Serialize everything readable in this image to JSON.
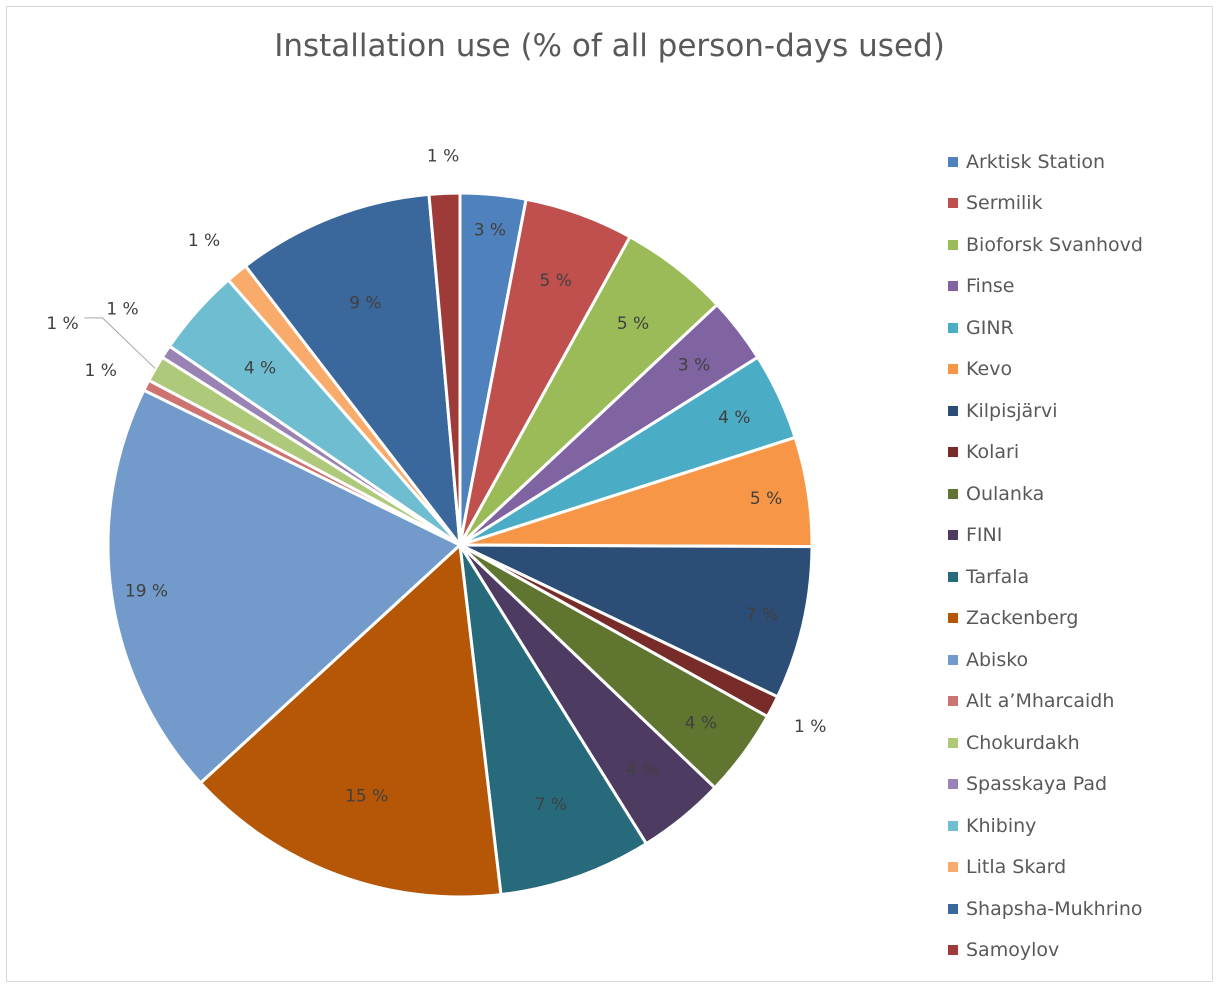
{
  "chart_data": {
    "type": "pie",
    "title": "Installation use (% of all person-days used)",
    "legend_position": "right",
    "slices": [
      {
        "name": "Arktisk Station",
        "value": 3,
        "label": "3 %",
        "color": "#4f81bd"
      },
      {
        "name": "Sermilik",
        "value": 5,
        "label": "5 %",
        "color": "#c0504d"
      },
      {
        "name": "Bioforsk Svanhovd",
        "value": 5,
        "label": "5 %",
        "color": "#9bbb59"
      },
      {
        "name": "Finse",
        "value": 3,
        "label": "3 %",
        "color": "#8064a2"
      },
      {
        "name": "GINR",
        "value": 4,
        "label": "4 %",
        "color": "#4bacc6"
      },
      {
        "name": "Kevo",
        "value": 5,
        "label": "5 %",
        "color": "#f79646"
      },
      {
        "name": "Kilpisjärvi",
        "value": 7,
        "label": "7 %",
        "color": "#2c4d75"
      },
      {
        "name": "Kolari",
        "value": 1,
        "label": "1 %",
        "color": "#772c2a"
      },
      {
        "name": "Oulanka",
        "value": 4,
        "label": "4 %",
        "color": "#5f7530"
      },
      {
        "name": "FINI",
        "value": 4,
        "label": "4 %",
        "color": "#4d3b62"
      },
      {
        "name": "Tarfala",
        "value": 7,
        "label": "7 %",
        "color": "#276a7c"
      },
      {
        "name": "Zackenberg",
        "value": 15,
        "label": "15 %",
        "color": "#b65708"
      },
      {
        "name": "Abisko",
        "value": 19,
        "label": "19 %",
        "color": "#729aca"
      },
      {
        "name": "Alt a’Mharcaidh",
        "value": 0.5,
        "label": "1 %",
        "color": "#cd7371"
      },
      {
        "name": "Chokurdakh",
        "value": 1.2,
        "label": "1 %",
        "color": "#afc97a"
      },
      {
        "name": "Spasskaya Pad",
        "value": 0.6,
        "label": "1 %",
        "color": "#9983b5"
      },
      {
        "name": "Khibiny",
        "value": 4,
        "label": "4 %",
        "color": "#6fbdd1"
      },
      {
        "name": "Litla Skard",
        "value": 1,
        "label": "1 %",
        "color": "#f9ab6b"
      },
      {
        "name": "Shapsha-Mukhrino",
        "value": 9,
        "label": "9 %",
        "color": "#3a679c"
      },
      {
        "name": "Samoylov",
        "value": 1.4,
        "label": "1 %",
        "color": "#9e3a38"
      }
    ]
  }
}
